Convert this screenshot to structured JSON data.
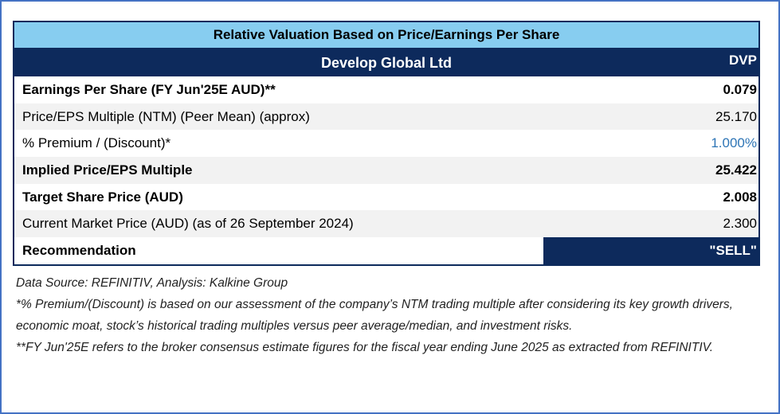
{
  "table": {
    "title": "Relative Valuation Based on Price/Earnings Per Share",
    "company": "Develop Global Ltd",
    "ticker": "DVP",
    "rows": [
      {
        "label": "Earnings Per Share (FY Jun'25E AUD)**",
        "value": "0.079"
      },
      {
        "label": "Price/EPS Multiple (NTM) (Peer Mean) (approx)",
        "value": "25.170"
      },
      {
        "label": "% Premium / (Discount)*",
        "value": "1.000%"
      },
      {
        "label": "Implied Price/EPS Multiple",
        "value": "25.422"
      },
      {
        "label": "Target Share Price (AUD)",
        "value": "2.008"
      },
      {
        "label": "Current Market Price (AUD) (as of 26 September 2024)",
        "value": "2.300"
      }
    ],
    "recommendation_label": "Recommendation",
    "recommendation_value": "\"SELL\""
  },
  "notes": {
    "source": "Data Source: REFINITIV, Analysis: Kalkine Group",
    "premium_note": "*% Premium/(Discount) is based on our assessment of the company’s NTM trading multiple after considering its key growth drivers, economic moat, stock’s historical trading multiples versus peer average/median, and investment risks.",
    "fy_note": "**FY Jun'25E refers to the broker consensus estimate figures for the fiscal year ending June 2025 as extracted from REFINITIV."
  },
  "colors": {
    "title_bg": "#87cdf0",
    "header_bg": "#0d2a5c",
    "frame_border": "#4472c4",
    "premium_value": "#2e75b6"
  }
}
